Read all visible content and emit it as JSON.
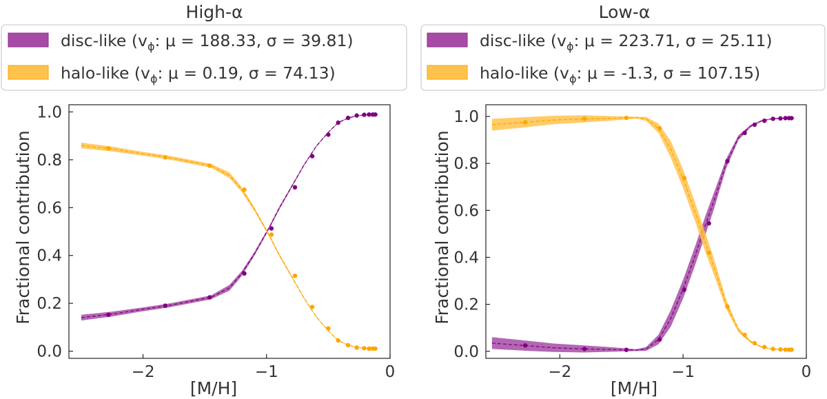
{
  "chart_data": [
    {
      "type": "line",
      "title": "High-α",
      "xlabel": "[M/H]",
      "ylabel": "Fractional contribution",
      "xlim": [
        -2.6,
        0.0
      ],
      "ylim": [
        -0.03,
        1.03
      ],
      "xticks": [
        "−2",
        "−1",
        "0"
      ],
      "yticks": [
        "0.0",
        "0.2",
        "0.4",
        "0.6",
        "0.8",
        "1.0"
      ],
      "legend_position": "above",
      "series": [
        {
          "name": "disc-like",
          "legend_label": "disc-like (v",
          "legend_sub": "ϕ",
          "legend_rest": ": μ = 188.33, σ = 39.81)",
          "color": "#800080",
          "band_color": "#a64ca6",
          "x": [
            -2.5,
            -2.25,
            -2.0,
            -1.8,
            -1.6,
            -1.45,
            -1.3,
            -1.2,
            -1.1,
            -0.98,
            -0.9,
            -0.8,
            -0.7,
            -0.6,
            -0.5,
            -0.42,
            -0.35,
            -0.28,
            -0.2,
            -0.14,
            -0.1
          ],
          "values": [
            0.14,
            0.155,
            0.175,
            0.19,
            0.21,
            0.225,
            0.265,
            0.325,
            0.405,
            0.515,
            0.595,
            0.685,
            0.775,
            0.855,
            0.915,
            0.955,
            0.972,
            0.983,
            0.988,
            0.989,
            0.989
          ],
          "band_width": [
            0.012,
            0.01,
            0.008,
            0.008,
            0.008,
            0.008,
            0.012,
            0.01,
            0.008,
            0.006,
            0.006,
            0.005,
            0.004,
            0.003,
            0.002,
            0.002,
            0.002,
            0.002,
            0.002,
            0.002,
            0.002
          ],
          "markers_x": [
            -2.28,
            -1.82,
            -1.46,
            -1.18,
            -0.96,
            -0.77,
            -0.63,
            -0.5,
            -0.42,
            -0.34,
            -0.27,
            -0.21,
            -0.17,
            -0.14,
            -0.12
          ],
          "markers_y": [
            0.152,
            0.19,
            0.225,
            0.325,
            0.513,
            0.685,
            0.815,
            0.905,
            0.955,
            0.975,
            0.985,
            0.988,
            0.989,
            0.989,
            0.989
          ]
        },
        {
          "name": "halo-like",
          "legend_label": "halo-like (v",
          "legend_sub": "ϕ",
          "legend_rest": ": μ = 0.19, σ = 74.13)",
          "color": "#ffa500",
          "band_color": "#ffc34d",
          "x": [
            -2.5,
            -2.25,
            -2.0,
            -1.8,
            -1.6,
            -1.45,
            -1.3,
            -1.2,
            -1.1,
            -0.98,
            -0.9,
            -0.8,
            -0.7,
            -0.6,
            -0.5,
            -0.42,
            -0.35,
            -0.28,
            -0.2,
            -0.14,
            -0.1
          ],
          "values": [
            0.86,
            0.845,
            0.825,
            0.81,
            0.79,
            0.775,
            0.735,
            0.675,
            0.595,
            0.485,
            0.405,
            0.315,
            0.225,
            0.145,
            0.085,
            0.045,
            0.028,
            0.017,
            0.012,
            0.011,
            0.011
          ],
          "band_width": [
            0.012,
            0.01,
            0.008,
            0.008,
            0.008,
            0.008,
            0.012,
            0.01,
            0.008,
            0.006,
            0.006,
            0.005,
            0.004,
            0.003,
            0.002,
            0.002,
            0.002,
            0.002,
            0.002,
            0.002,
            0.002
          ],
          "markers_x": [
            -2.28,
            -1.82,
            -1.46,
            -1.18,
            -0.96,
            -0.77,
            -0.63,
            -0.5,
            -0.42,
            -0.34,
            -0.27,
            -0.21,
            -0.17,
            -0.14,
            -0.12
          ],
          "markers_y": [
            0.848,
            0.81,
            0.775,
            0.675,
            0.487,
            0.315,
            0.185,
            0.095,
            0.045,
            0.025,
            0.015,
            0.012,
            0.011,
            0.011,
            0.011
          ]
        }
      ]
    },
    {
      "type": "line",
      "title": "Low-α",
      "xlabel": "[M/H]",
      "ylabel": "Fractional contribution",
      "xlim": [
        -2.6,
        0.0
      ],
      "ylim": [
        -0.03,
        1.05
      ],
      "xticks": [
        "−2",
        "−1",
        "0"
      ],
      "yticks": [
        "0.0",
        "0.2",
        "0.4",
        "0.6",
        "0.8",
        "1.0"
      ],
      "legend_position": "above",
      "series": [
        {
          "name": "disc-like",
          "legend_label": "disc-like (v",
          "legend_sub": "ϕ",
          "legend_rest": ": μ = 223.71, σ = 25.11)",
          "color": "#800080",
          "band_color": "#a64ca6",
          "x": [
            -2.55,
            -2.3,
            -2.05,
            -1.8,
            -1.6,
            -1.45,
            -1.38,
            -1.3,
            -1.2,
            -1.1,
            -1.0,
            -0.9,
            -0.82,
            -0.75,
            -0.65,
            -0.55,
            -0.45,
            -0.36,
            -0.28,
            -0.2,
            -0.15,
            -0.1
          ],
          "values": [
            0.035,
            0.025,
            0.015,
            0.01,
            0.008,
            0.006,
            0.005,
            0.01,
            0.05,
            0.14,
            0.265,
            0.41,
            0.535,
            0.64,
            0.8,
            0.91,
            0.96,
            0.982,
            0.99,
            0.992,
            0.993,
            0.993
          ],
          "band_width": [
            0.025,
            0.022,
            0.018,
            0.015,
            0.01,
            0.006,
            0.004,
            0.008,
            0.02,
            0.035,
            0.04,
            0.04,
            0.04,
            0.035,
            0.02,
            0.01,
            0.005,
            0.003,
            0.002,
            0.002,
            0.002,
            0.002
          ],
          "markers_x": [
            -2.28,
            -1.8,
            -1.46,
            -1.19,
            -0.99,
            -0.79,
            -0.64,
            -0.5,
            -0.42,
            -0.34,
            -0.27,
            -0.21,
            -0.17,
            -0.14,
            -0.12
          ],
          "markers_y": [
            0.025,
            0.01,
            0.006,
            0.05,
            0.262,
            0.545,
            0.81,
            0.93,
            0.965,
            0.982,
            0.99,
            0.992,
            0.993,
            0.993,
            0.993
          ]
        },
        {
          "name": "halo-like",
          "legend_label": "halo-like (v",
          "legend_sub": "ϕ",
          "legend_rest": ": μ = -1.3, σ = 107.15)",
          "color": "#ffa500",
          "band_color": "#ffc34d",
          "x": [
            -2.55,
            -2.3,
            -2.05,
            -1.8,
            -1.6,
            -1.45,
            -1.38,
            -1.3,
            -1.2,
            -1.1,
            -1.0,
            -0.9,
            -0.82,
            -0.75,
            -0.65,
            -0.55,
            -0.45,
            -0.36,
            -0.28,
            -0.2,
            -0.15,
            -0.1
          ],
          "values": [
            0.965,
            0.975,
            0.985,
            0.99,
            0.992,
            0.994,
            0.995,
            0.99,
            0.95,
            0.86,
            0.735,
            0.59,
            0.465,
            0.36,
            0.2,
            0.09,
            0.04,
            0.018,
            0.01,
            0.008,
            0.007,
            0.007
          ],
          "band_width": [
            0.025,
            0.022,
            0.018,
            0.015,
            0.01,
            0.006,
            0.004,
            0.008,
            0.02,
            0.035,
            0.04,
            0.04,
            0.04,
            0.035,
            0.02,
            0.01,
            0.005,
            0.003,
            0.002,
            0.002,
            0.002,
            0.002
          ],
          "markers_x": [
            -2.28,
            -1.8,
            -1.46,
            -1.19,
            -0.99,
            -0.79,
            -0.64,
            -0.5,
            -0.42,
            -0.34,
            -0.27,
            -0.21,
            -0.17,
            -0.14,
            -0.12
          ],
          "markers_y": [
            0.975,
            0.99,
            0.994,
            0.95,
            0.738,
            0.42,
            0.19,
            0.07,
            0.035,
            0.018,
            0.01,
            0.008,
            0.007,
            0.007,
            0.007
          ]
        }
      ]
    }
  ]
}
